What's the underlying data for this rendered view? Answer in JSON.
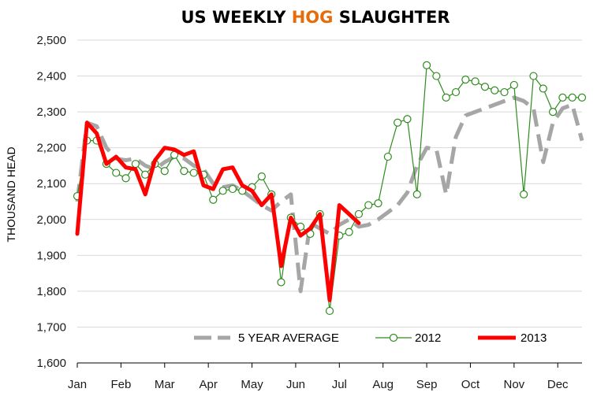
{
  "chart_data": {
    "type": "line",
    "title": {
      "parts": [
        {
          "text": "US WEEKLY ",
          "color": "#000000"
        },
        {
          "text": "HOG",
          "color": "#E46C0A"
        },
        {
          "text": " SLAUGHTER",
          "color": "#000000"
        }
      ]
    },
    "ylabel": "THOUSAND HEAD",
    "xlabel": "",
    "ylim": [
      1600,
      2500
    ],
    "yticks": [
      1600,
      1700,
      1800,
      1900,
      2000,
      2100,
      2200,
      2300,
      2400,
      2500
    ],
    "ytick_labels": [
      "1,600",
      "1,700",
      "1,800",
      "1,900",
      "2,000",
      "2,100",
      "2,200",
      "2,300",
      "2,400",
      "2,500"
    ],
    "xlim": [
      1,
      53
    ],
    "xticks": [
      1,
      5.5,
      10,
      14.5,
      19,
      23.5,
      28,
      32.5,
      37,
      41.5,
      46,
      50.5
    ],
    "xtick_labels": [
      "Jan",
      "Feb",
      "Mar",
      "Apr",
      "May",
      "Jun",
      "Jul",
      "Aug",
      "Sep",
      "Oct",
      "Nov",
      "Dec"
    ],
    "grid": true,
    "legend_position": "bottom-right",
    "colors": {
      "avg": "#A6A6A6",
      "y2012": "#2E8B1E",
      "y2013": "#FF0000",
      "grid": "#D9D9D9",
      "title_accent": "#E46C0A"
    },
    "series": [
      {
        "name": "5 YEAR AVERAGE",
        "style": "dashed",
        "x": [
          1,
          2,
          3,
          4,
          5,
          6,
          7,
          8,
          9,
          10,
          11,
          12,
          13,
          14,
          15,
          16,
          17,
          18,
          19,
          20,
          21,
          22,
          23,
          24,
          25,
          26,
          27,
          28,
          29,
          30,
          31,
          32,
          33,
          34,
          35,
          36,
          37,
          38,
          39,
          40,
          41,
          42,
          43,
          44,
          45,
          46,
          47,
          48,
          49,
          50,
          51,
          52,
          53
        ],
        "y": [
          2050,
          2270,
          2260,
          2200,
          2170,
          2165,
          2170,
          2150,
          2140,
          2160,
          2175,
          2170,
          2150,
          2140,
          2100,
          2090,
          2095,
          2080,
          2060,
          2040,
          2025,
          2050,
          2070,
          1800,
          1990,
          1975,
          1960,
          1985,
          2000,
          1980,
          1985,
          2000,
          2020,
          2040,
          2075,
          2150,
          2200,
          2195,
          2070,
          2230,
          2290,
          2300,
          2310,
          2320,
          2330,
          2340,
          2330,
          2310,
          2160,
          2270,
          2310,
          2320,
          2220
        ]
      },
      {
        "name": "2012",
        "style": "marker",
        "x": [
          1,
          2,
          3,
          4,
          5,
          6,
          7,
          8,
          9,
          10,
          11,
          12,
          13,
          14,
          15,
          16,
          17,
          18,
          19,
          20,
          21,
          22,
          23,
          24,
          25,
          26,
          27,
          28,
          29,
          30,
          31,
          32,
          33,
          34,
          35,
          36,
          37,
          38,
          39,
          40,
          41,
          42,
          43,
          44,
          45,
          46,
          47,
          48,
          49,
          50,
          51,
          52,
          53
        ],
        "y": [
          2065,
          2220,
          2220,
          2155,
          2130,
          2115,
          2155,
          2125,
          2155,
          2135,
          2180,
          2135,
          2130,
          2125,
          2055,
          2080,
          2085,
          2080,
          2090,
          2120,
          2070,
          1825,
          2005,
          1980,
          1960,
          2015,
          1745,
          1955,
          1965,
          2015,
          2040,
          2045,
          2175,
          2270,
          2280,
          2070,
          2430,
          2400,
          2340,
          2355,
          2390,
          2385,
          2370,
          2360,
          2355,
          2375,
          2070,
          2400,
          2365,
          2300,
          2340,
          2340,
          2340
        ]
      },
      {
        "name": "2013",
        "style": "solid-thick",
        "x": [
          1,
          2,
          3,
          4,
          5,
          6,
          7,
          8,
          9,
          10,
          11,
          12,
          13,
          14,
          15,
          16,
          17,
          18,
          19,
          20,
          21,
          22,
          23,
          24,
          25,
          26,
          27,
          28,
          29,
          30,
          31
        ],
        "y": [
          1960,
          2270,
          2240,
          2155,
          2175,
          2145,
          2140,
          2070,
          2165,
          2200,
          2195,
          2180,
          2190,
          2095,
          2085,
          2140,
          2145,
          2095,
          2080,
          2040,
          2070,
          1870,
          2005,
          1955,
          1975,
          2015,
          1775,
          2040,
          2015,
          1990,
          null
        ]
      }
    ]
  }
}
